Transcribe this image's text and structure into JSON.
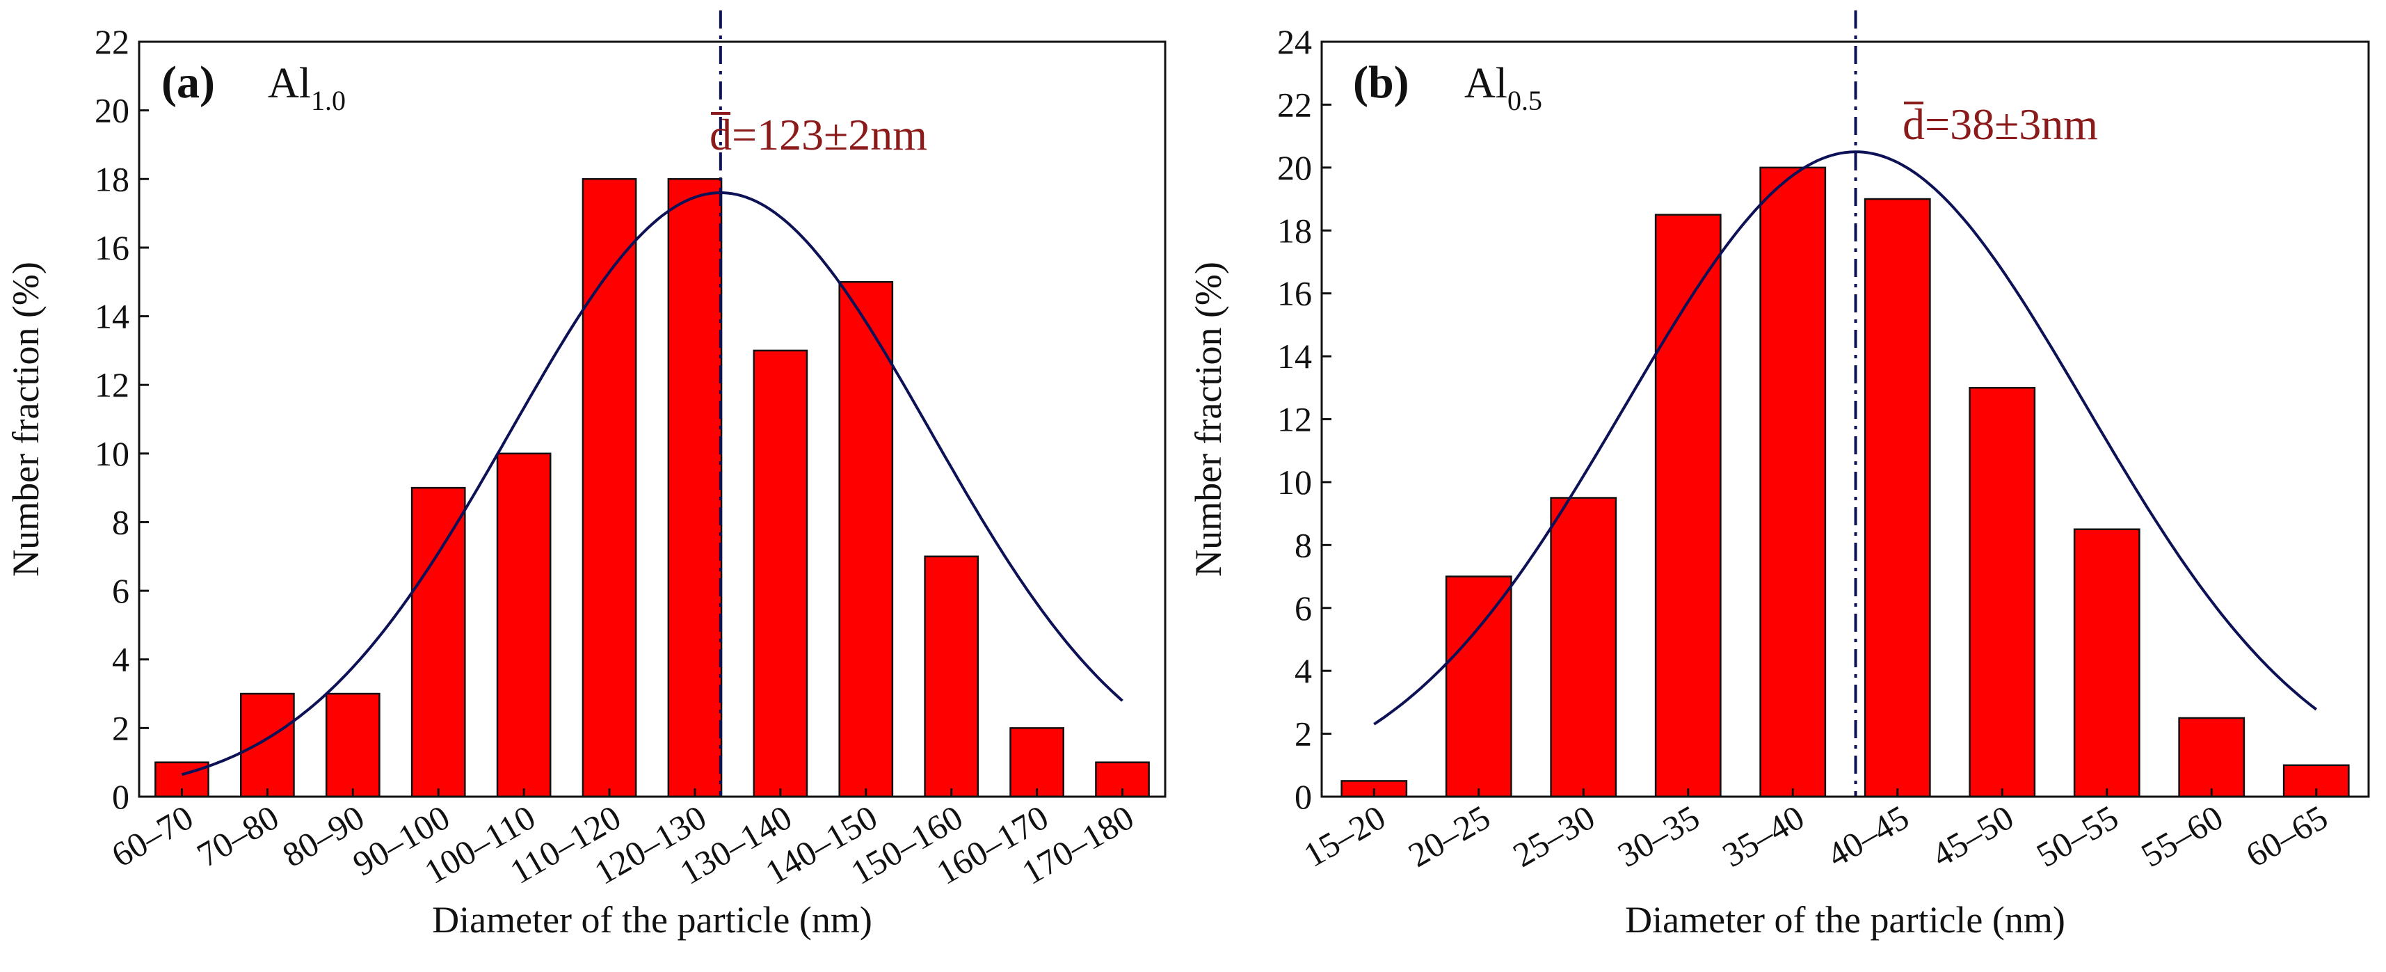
{
  "colors": {
    "bar": "#ff0000",
    "curve": "#0d1155",
    "mean_line": "#0d1155",
    "annotation": "#8b1a1a"
  },
  "chart_data": [
    {
      "type": "bar",
      "panel_label": "(a)",
      "series_label": {
        "base": "Al",
        "sub": "1.0"
      },
      "categories": [
        "60–70",
        "70–80",
        "80–90",
        "90–100",
        "100–110",
        "110–120",
        "120–130",
        "130–140",
        "140–150",
        "150–160",
        "160–170",
        "170–180"
      ],
      "values": [
        1,
        3,
        3,
        9,
        10,
        18,
        18,
        13,
        15,
        7,
        2,
        1
      ],
      "xlabel": "Diameter of the particle (nm)",
      "ylabel": "Number fraction (%)",
      "ylim": [
        0,
        22
      ],
      "yticks": [
        "0",
        "2",
        "4",
        "6",
        "8",
        "10",
        "12",
        "14",
        "16",
        "18",
        "20",
        "22"
      ],
      "fit": {
        "type": "gaussian",
        "peak": 17.6,
        "center_index": 6.3,
        "sigma_bins": 2.45
      },
      "mean_line_index": 6.3,
      "annotation": {
        "prefix": "d",
        "rest": "=123±2nm"
      }
    },
    {
      "type": "bar",
      "panel_label": "(b)",
      "series_label": {
        "base": "Al",
        "sub": "0.5"
      },
      "categories": [
        "15–20",
        "20–25",
        "25–30",
        "30–35",
        "35–40",
        "40–45",
        "45–50",
        "50–55",
        "55–60",
        "60–65"
      ],
      "values": [
        0.5,
        7,
        9.5,
        18.5,
        20,
        19,
        13,
        8.5,
        2.5,
        1
      ],
      "xlabel": "Diameter of the particle (nm)",
      "ylabel": "Number fraction (%)",
      "ylim": [
        0,
        24
      ],
      "yticks": [
        "0",
        "2",
        "4",
        "6",
        "8",
        "10",
        "12",
        "14",
        "16",
        "18",
        "20",
        "22",
        "24"
      ],
      "fit": {
        "type": "gaussian",
        "peak": 20.5,
        "center_index": 4.6,
        "sigma_bins": 2.2
      },
      "mean_line_index": 4.6,
      "annotation": {
        "prefix": "d",
        "rest": "=38±3nm"
      }
    }
  ]
}
